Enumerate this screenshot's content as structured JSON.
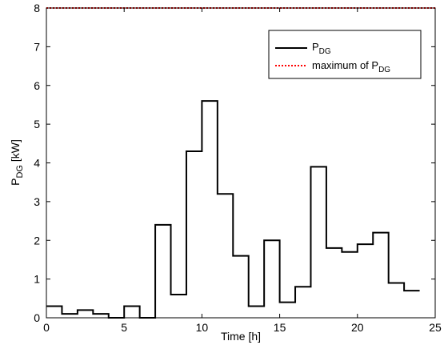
{
  "chart_data": {
    "type": "line",
    "step": "post",
    "xlabel": {
      "main": "Time [h]"
    },
    "ylabel": {
      "main": "P",
      "sub": "DG",
      "suffix": " [kW]"
    },
    "xlim": [
      0,
      25
    ],
    "ylim": [
      0,
      8
    ],
    "xticks": [
      0,
      5,
      10,
      15,
      20,
      25
    ],
    "yticks": [
      0,
      1,
      2,
      3,
      4,
      5,
      6,
      7,
      8
    ],
    "grid": false,
    "legend_position": "top-right",
    "series": [
      {
        "name": {
          "main": "P",
          "sub": "DG"
        },
        "color": "#000000",
        "style": "solid",
        "x": [
          0,
          1,
          2,
          3,
          4,
          5,
          6,
          7,
          8,
          9,
          10,
          11,
          12,
          13,
          14,
          15,
          16,
          17,
          18,
          19,
          20,
          21,
          22,
          23,
          24
        ],
        "y": [
          0.3,
          0.1,
          0.2,
          0.1,
          0.0,
          0.3,
          0.0,
          2.4,
          0.6,
          4.3,
          5.6,
          3.2,
          1.6,
          0.3,
          2.0,
          0.4,
          0.8,
          3.9,
          1.8,
          1.7,
          1.9,
          2.2,
          0.9,
          0.7,
          0.7
        ]
      },
      {
        "name": {
          "main": "maximum of P",
          "sub": "DG"
        },
        "color": "#ff0000",
        "style": "dotted",
        "x": [
          0,
          25
        ],
        "y": [
          8,
          8
        ]
      }
    ]
  }
}
